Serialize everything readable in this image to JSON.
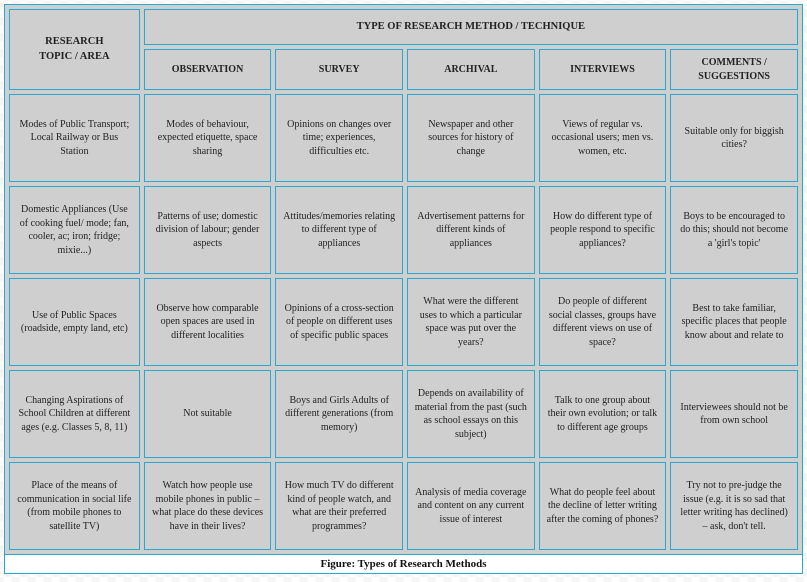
{
  "header": {
    "topicLabel": "RESEARCH\nTOPIC / AREA",
    "groupLabel": "TYPE OF RESEARCH METHOD / TECHNIQUE"
  },
  "columns": [
    "OBSERVATION",
    "SURVEY",
    "ARCHIVAL",
    "INTERVIEWS",
    "COMMENTS /\nSUGGESTIONS"
  ],
  "rows": [
    {
      "topic": "Modes of Public Transport; Local Railway or Bus Station",
      "cells": [
        "Modes of behaviour, expected etiquette, space sharing",
        "Opinions on changes over time; experiences, difficulties etc.",
        "Newspaper and other sources for history of change",
        "Views of regular vs. occasional users; men vs. women, etc.",
        "Suitable only for biggish cities?"
      ]
    },
    {
      "topic": "Domestic Appliances (Use of cooking fuel/ mode; fan, cooler, ac; iron;  fridge; mixie...)",
      "cells": [
        "Patterns of use; domestic division of labour; gender aspects",
        "Attitudes/memories relating to different type of appliances",
        "Advertisement patterns for different kinds of appliances",
        "How do different type of people respond to specific appliances?",
        "Boys to be encouraged to do this; should not become a  'girl's topic'"
      ]
    },
    {
      "topic": "Use of Public Spaces (roadside, empty land, etc)",
      "cells": [
        "Observe how comparable open spaces are used in different localities",
        "Opinions of a cross-section of people on different uses of specific public spaces",
        "What were the different uses to which a particular space was put over the years?",
        "Do people of different social classes, groups have different views on use of space?",
        "Best to take familiar, specific places that people know about and relate to"
      ]
    },
    {
      "topic": "Changing Aspirations of School Children at different ages (e.g. Classes 5, 8, 11)",
      "cells": [
        "Not suitable",
        "Boys and Girls Adults of different generations (from memory)",
        "Depends on availability of material from the past (such as school essays on this subject)",
        "Talk to one group about their own evolution; or talk to different age groups",
        "Interviewees should not be from own school"
      ]
    },
    {
      "topic": "Place of the means of communication in social life (from mobile phones to satellite TV)",
      "cells": [
        "Watch how people use mobile phones in public – what place do these devices have in their lives?",
        "How much TV do different kind of people watch, and what are their preferred programmes?",
        "Analysis of media coverage and content on any current issue of interest",
        "What do people feel about the decline of letter writing after the coming of phones?",
        "Try not to pre-judge the issue (e.g. it is so sad that letter writing has declined) – ask, don't tell."
      ]
    }
  ],
  "caption": "Figure: Types of Research Methods",
  "style": {
    "cell_bg": "#cfcfcf",
    "border_color": "#2aa9d0",
    "font_family": "Georgia, 'Times New Roman', serif",
    "font_size_body": 10,
    "font_size_header": 10.5,
    "col_widths_pct": [
      17,
      16.6,
      16.6,
      16.6,
      16.6,
      16.6
    ]
  }
}
